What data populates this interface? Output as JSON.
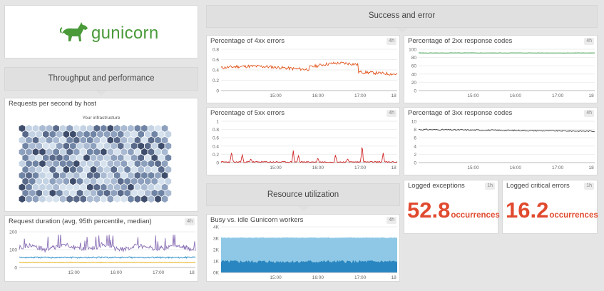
{
  "logo": {
    "text": "gunicorn",
    "color": "#4a9a3a"
  },
  "sections": {
    "throughput": "Throughput and performance",
    "success_error": "Success and error",
    "resource": "Resource utilization"
  },
  "time_window": "4h",
  "exceptions_window": "1h",
  "x_ticks": [
    "15:00",
    "16:00",
    "17:00",
    "18"
  ],
  "hostmap": {
    "title": "Requests per second by host",
    "subtitle": "Your infrastructure"
  },
  "duration": {
    "title": "Request duration (avg, 95th percentile, median)",
    "y_ticks": [
      "200",
      "100",
      "0"
    ]
  },
  "err4xx": {
    "title": "Percentage of 4xx errors",
    "y_ticks": [
      "0.8",
      "0.6",
      "0.4",
      "0.2",
      "0"
    ]
  },
  "err5xx": {
    "title": "Percentage of 5xx errors",
    "y_ticks": [
      "1",
      "0.8",
      "0.6",
      "0.4",
      "0.2",
      "0"
    ]
  },
  "workers": {
    "title": "Busy vs. idle Gunicorn workers",
    "y_ticks": [
      "4K",
      "3K",
      "2K",
      "1K",
      "0K"
    ]
  },
  "resp2xx": {
    "title": "Percentage of 2xx response codes",
    "y_ticks": [
      "100",
      "80",
      "60",
      "40",
      "20",
      "0"
    ]
  },
  "resp3xx": {
    "title": "Percentage of 3xx response codes",
    "y_ticks": [
      "10",
      "8",
      "6",
      "4",
      "2",
      "0"
    ]
  },
  "logged_exceptions": {
    "title": "Logged exceptions",
    "value": "52.8",
    "unit": "occurrences"
  },
  "logged_critical": {
    "title": "Logged critical errors",
    "value": "16.2",
    "unit": "occurrences"
  },
  "colors": {
    "err4xx": "#e0561e",
    "err5xx": "#d12a2a",
    "resp2xx": "#3a9a4a",
    "resp3xx": "#444444",
    "duration_avg": "#8a6fb5",
    "duration_p95": "#2f8fc9",
    "duration_median": "#e8b92a",
    "workers_idle": "#8ec8e6",
    "workers_busy": "#2a86c0",
    "hex_dark": "#4a5a78",
    "hex_light": "#c6d6e6"
  }
}
